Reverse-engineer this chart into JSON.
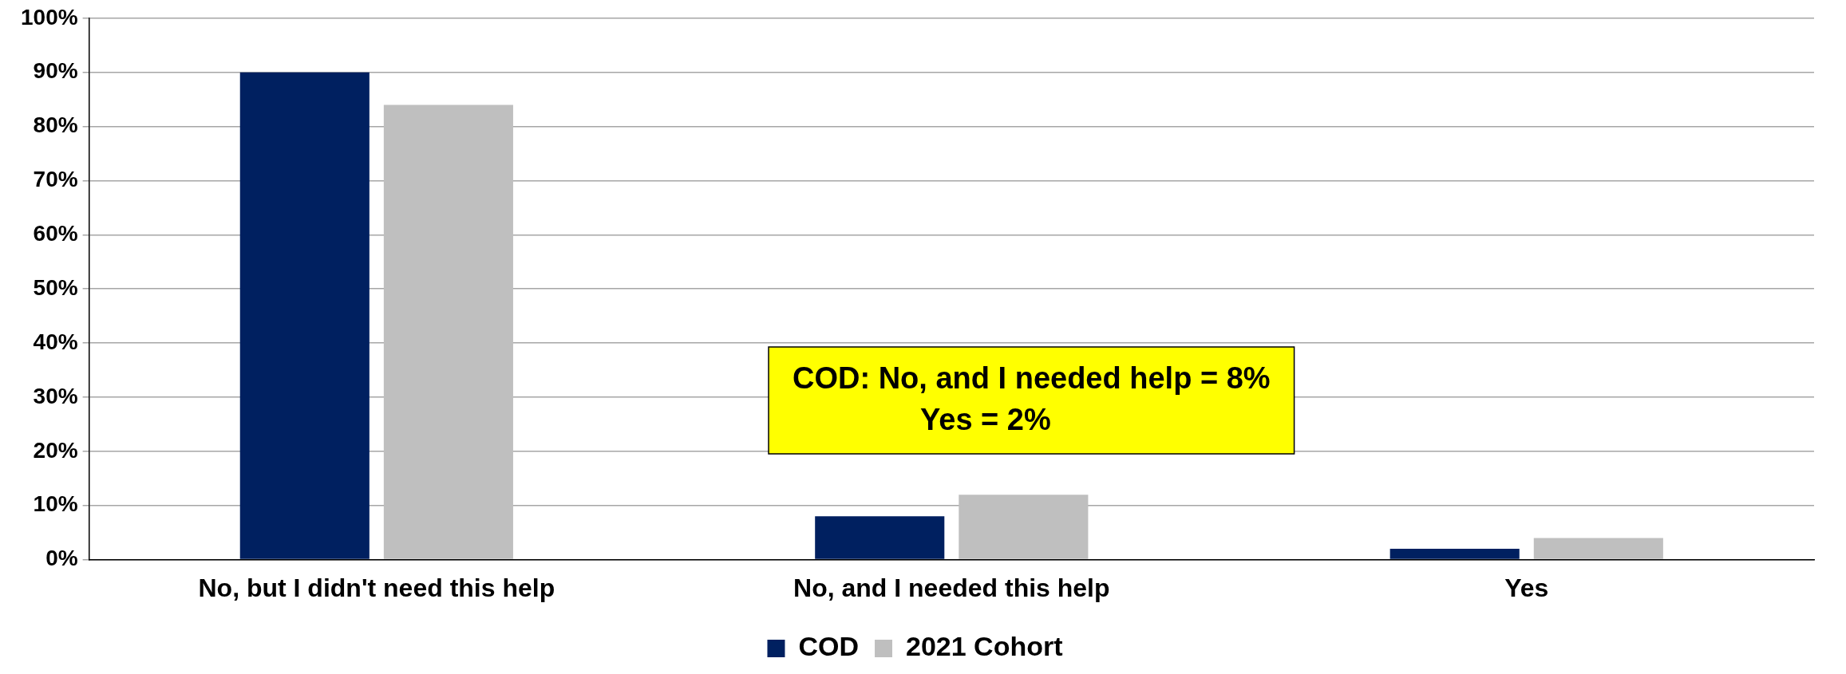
{
  "chart_data": {
    "type": "bar",
    "categories": [
      "No, but I didn't need this help",
      "No, and I needed this help",
      "Yes"
    ],
    "series": [
      {
        "name": "COD",
        "color": "#002060",
        "values": [
          90,
          8,
          2
        ]
      },
      {
        "name": "2021 Cohort",
        "color": "#bfbfbf",
        "values": [
          84,
          12,
          4
        ]
      }
    ],
    "ylim": [
      0,
      100
    ],
    "yticks": [
      {
        "value": 0,
        "label": "0%"
      },
      {
        "value": 10,
        "label": "10%"
      },
      {
        "value": 20,
        "label": "20%"
      },
      {
        "value": 30,
        "label": "30%"
      },
      {
        "value": 40,
        "label": "40%"
      },
      {
        "value": 50,
        "label": "50%"
      },
      {
        "value": 60,
        "label": "60%"
      },
      {
        "value": 70,
        "label": "70%"
      },
      {
        "value": 80,
        "label": "80%"
      },
      {
        "value": 90,
        "label": "90%"
      },
      {
        "value": 100,
        "label": "100%"
      }
    ],
    "grid": "y",
    "legend": "bottom",
    "annotations": [
      "COD: No, and I needed help = 8%",
      "Yes = 2%"
    ]
  }
}
